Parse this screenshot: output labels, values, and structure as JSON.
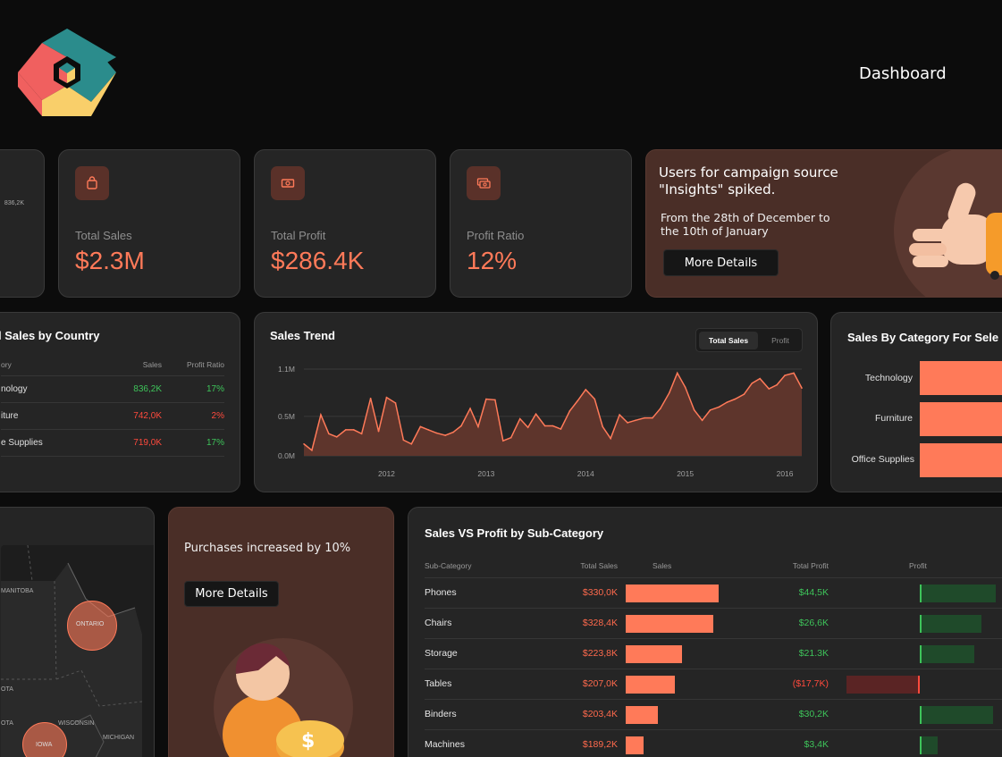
{
  "header": {
    "title": "Dashboard"
  },
  "partial_card": {
    "value": "836,2K"
  },
  "kpis": [
    {
      "label": "Total Sales",
      "value": "$2.3M",
      "icon": "shopping-bag-icon"
    },
    {
      "label": "Total Profit",
      "value": "$286.4K",
      "icon": "money-icon"
    },
    {
      "label": "Profit Ratio",
      "value": "12%",
      "icon": "money-stack-icon"
    }
  ],
  "promo_top": {
    "line1": "Users for campaign source",
    "line2": "\"Insights\" spiked.",
    "sub1": "From the 28th of December to",
    "sub2": "the 10th of January",
    "button": "More Details"
  },
  "country_table": {
    "title": "l Sales by Country",
    "headers": [
      "ory",
      "Sales",
      "Profit Ratio"
    ],
    "rows": [
      {
        "name": "nology",
        "sales": "836,2K",
        "ratio": "17%",
        "positive": true
      },
      {
        "name": "iture",
        "sales": "742,0K",
        "ratio": "2%",
        "positive": false
      },
      {
        "name": "e Supplies",
        "sales": "719,0K",
        "ratio": "17%",
        "positive": true
      }
    ]
  },
  "trend": {
    "title": "Sales Trend",
    "toggle_active": "Total Sales",
    "toggle_inactive": "Profit"
  },
  "chart_data": {
    "type": "area",
    "title": "Sales Trend",
    "ylim": [
      0,
      1.1
    ],
    "ylabel": "",
    "y_ticks": [
      "0.0M",
      "0.5M",
      "1.1M"
    ],
    "x_ticks": [
      "2012",
      "2013",
      "2014",
      "2015",
      "2016"
    ],
    "x_tick_positions": [
      2012,
      2013,
      2014,
      2015,
      2016
    ],
    "x": [
      2011.5,
      2011.58,
      2011.67,
      2011.75,
      2011.83,
      2011.92,
      2012.0,
      2012.08,
      2012.17,
      2012.25,
      2012.33,
      2012.42,
      2012.5,
      2012.58,
      2012.67,
      2012.75,
      2012.83,
      2012.92,
      2013.0,
      2013.08,
      2013.17,
      2013.25,
      2013.33,
      2013.42,
      2013.5,
      2013.58,
      2013.67,
      2013.75,
      2013.83,
      2013.92,
      2014.0,
      2014.08,
      2014.17,
      2014.25,
      2014.33,
      2014.42,
      2014.5,
      2014.58,
      2014.67,
      2014.75,
      2014.83,
      2014.92,
      2015.0,
      2015.08,
      2015.17,
      2015.25,
      2015.33,
      2015.42,
      2015.5,
      2015.58,
      2015.67,
      2015.75,
      2015.83,
      2015.92,
      2016.0,
      2016.08,
      2016.17,
      2016.25,
      2016.33,
      2016.42,
      2016.5
    ],
    "values": [
      0.15,
      0.07,
      0.52,
      0.28,
      0.24,
      0.33,
      0.33,
      0.28,
      0.73,
      0.31,
      0.74,
      0.67,
      0.2,
      0.15,
      0.37,
      0.33,
      0.29,
      0.26,
      0.3,
      0.38,
      0.6,
      0.37,
      0.72,
      0.71,
      0.19,
      0.23,
      0.47,
      0.36,
      0.53,
      0.38,
      0.38,
      0.34,
      0.57,
      0.7,
      0.84,
      0.72,
      0.37,
      0.22,
      0.52,
      0.42,
      0.45,
      0.48,
      0.48,
      0.6,
      0.8,
      1.05,
      0.87,
      0.58,
      0.45,
      0.58,
      0.62,
      0.68,
      0.72,
      0.78,
      0.92,
      0.98,
      0.85,
      0.9,
      1.02,
      1.05,
      0.86
    ]
  },
  "category": {
    "title": "Sales By Category For Sele",
    "items": [
      {
        "label": "Technology"
      },
      {
        "label": "Furniture"
      },
      {
        "label": "Office Supplies"
      }
    ]
  },
  "map": {
    "labels": [
      "MANITOBA",
      "ONTARIO",
      "OTA",
      "WISCONSIN",
      "MICHIGAN",
      "IOWA",
      "OTA"
    ]
  },
  "promo_bottom": {
    "text": "Purchases increased by 10%",
    "button": "More Details"
  },
  "subcat": {
    "title": "Sales VS Profit by Sub-Category",
    "headers": [
      "Sub-Category",
      "Total Sales",
      "Sales",
      "Total Profit",
      "Profit"
    ],
    "rows": [
      {
        "name": "Phones",
        "sales": "$330,0K",
        "sales_frac": 1.0,
        "profit": "$44,5K",
        "profit_frac": 0.52
      },
      {
        "name": "Chairs",
        "sales": "$328,4K",
        "sales_frac": 0.94,
        "profit": "$26,6K",
        "profit_frac": 0.42
      },
      {
        "name": "Storage",
        "sales": "$223,8K",
        "sales_frac": 0.61,
        "profit": "$21.3K",
        "profit_frac": 0.37
      },
      {
        "name": "Tables",
        "sales": "$207,0K",
        "sales_frac": 0.53,
        "profit": "($17,7K)",
        "profit_frac": -0.5
      },
      {
        "name": "Binders",
        "sales": "$203,4K",
        "sales_frac": 0.35,
        "profit": "$30,2K",
        "profit_frac": 0.5
      },
      {
        "name": "Machines",
        "sales": "$189,2K",
        "sales_frac": 0.19,
        "profit": "$3,4K",
        "profit_frac": 0.12
      }
    ]
  },
  "colors": {
    "accent": "#ff7a59",
    "positive": "#3ec45a",
    "negative": "#ff4a3d",
    "card": "#252525",
    "brown": "#4a2e27"
  }
}
